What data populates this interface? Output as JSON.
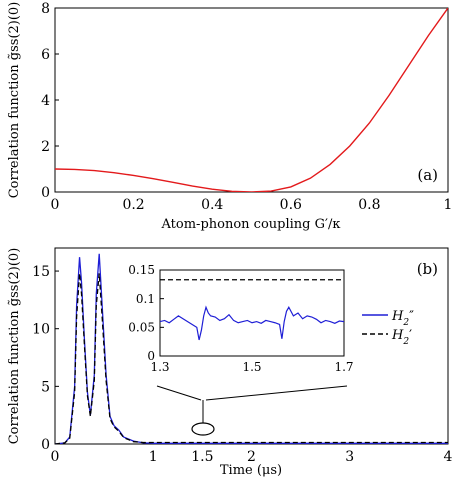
{
  "chart_data": [
    {
      "panel_label": "(a)",
      "type": "line",
      "xlabel": "Atom-phonon coupling G′/κ",
      "ylabel": "Correlation function g̃ss(2)(0)",
      "xlim": [
        0,
        1
      ],
      "ylim": [
        0,
        8
      ],
      "xticks": [
        "0",
        "0.2",
        "0.4",
        "0.6",
        "0.8",
        "1"
      ],
      "yticks": [
        "0",
        "2",
        "4",
        "6",
        "8"
      ],
      "grid": false,
      "color": "#e31a1c",
      "series": [
        {
          "name": "",
          "x": [
            0,
            0.05,
            0.1,
            0.15,
            0.2,
            0.25,
            0.3,
            0.35,
            0.4,
            0.45,
            0.5,
            0.55,
            0.6,
            0.65,
            0.7,
            0.75,
            0.8,
            0.85,
            0.9,
            0.95,
            1.0
          ],
          "y": [
            1.0,
            0.98,
            0.93,
            0.84,
            0.72,
            0.58,
            0.42,
            0.26,
            0.12,
            0.03,
            0.0,
            0.04,
            0.22,
            0.6,
            1.2,
            2.0,
            3.0,
            4.2,
            5.5,
            6.8,
            8.0
          ]
        }
      ]
    },
    {
      "panel_label": "(b)",
      "type": "line",
      "xlabel": "Time (μs)",
      "ylabel": "Correlation function g̃ss(2)(0)",
      "xlim": [
        0,
        4
      ],
      "ylim": [
        0,
        17
      ],
      "xticks": [
        "0",
        "1",
        "1.5",
        "2",
        "3",
        "4"
      ],
      "yticks": [
        "0",
        "5",
        "10",
        "15"
      ],
      "legend_position": "right",
      "series": [
        {
          "name": "H2″",
          "color": "#1f1fd6",
          "x": [
            0,
            0.1,
            0.15,
            0.2,
            0.22,
            0.25,
            0.27,
            0.3,
            0.33,
            0.36,
            0.4,
            0.42,
            0.45,
            0.48,
            0.52,
            0.56,
            0.6,
            0.65,
            0.7,
            0.8,
            0.9,
            1.0,
            1.2,
            1.5,
            2.0,
            3.0,
            4.0
          ],
          "y": [
            0,
            0.1,
            0.6,
            5.0,
            12.0,
            16.2,
            14.0,
            9.0,
            4.5,
            2.5,
            6.0,
            13.0,
            16.5,
            12.0,
            6.0,
            2.4,
            1.6,
            1.2,
            0.6,
            0.25,
            0.1,
            0.06,
            0.06,
            0.06,
            0.06,
            0.06,
            0.06
          ]
        },
        {
          "name": "H2′",
          "color": "#000000",
          "dashed": true,
          "x": [
            0,
            0.1,
            0.15,
            0.2,
            0.22,
            0.25,
            0.27,
            0.3,
            0.33,
            0.36,
            0.4,
            0.42,
            0.45,
            0.48,
            0.52,
            0.56,
            0.6,
            0.65,
            0.7,
            0.8,
            0.9,
            1.0,
            1.2,
            1.5,
            2.0,
            3.0,
            4.0
          ],
          "y": [
            0,
            0.1,
            0.5,
            4.5,
            11.0,
            14.8,
            13.0,
            8.5,
            4.2,
            2.4,
            5.5,
            12.0,
            14.8,
            11.0,
            5.5,
            2.2,
            1.5,
            1.1,
            0.55,
            0.2,
            0.13,
            0.13,
            0.13,
            0.13,
            0.13,
            0.13,
            0.13
          ]
        }
      ],
      "inset": {
        "xlim": [
          1.3,
          1.7
        ],
        "ylim": [
          0,
          0.15
        ],
        "xticks": [
          "1.3",
          "1.5",
          "1.7"
        ],
        "yticks": [
          "0",
          "0.05",
          "0.1",
          "0.15"
        ],
        "series": [
          {
            "name": "H2″",
            "color": "#1f1fd6",
            "x": [
              1.3,
              1.31,
              1.32,
              1.33,
              1.34,
              1.35,
              1.36,
              1.37,
              1.38,
              1.385,
              1.39,
              1.395,
              1.4,
              1.405,
              1.41,
              1.42,
              1.43,
              1.44,
              1.45,
              1.46,
              1.47,
              1.48,
              1.49,
              1.5,
              1.51,
              1.52,
              1.53,
              1.54,
              1.55,
              1.56,
              1.565,
              1.57,
              1.575,
              1.58,
              1.59,
              1.6,
              1.61,
              1.62,
              1.63,
              1.64,
              1.65,
              1.66,
              1.67,
              1.68,
              1.69,
              1.7
            ],
            "y": [
              0.06,
              0.062,
              0.058,
              0.064,
              0.07,
              0.065,
              0.06,
              0.055,
              0.05,
              0.028,
              0.045,
              0.07,
              0.085,
              0.075,
              0.07,
              0.068,
              0.062,
              0.065,
              0.072,
              0.062,
              0.058,
              0.06,
              0.062,
              0.058,
              0.06,
              0.057,
              0.062,
              0.06,
              0.058,
              0.055,
              0.03,
              0.06,
              0.078,
              0.085,
              0.07,
              0.075,
              0.065,
              0.07,
              0.068,
              0.064,
              0.058,
              0.062,
              0.06,
              0.057,
              0.061,
              0.06
            ]
          },
          {
            "name": "H2′",
            "color": "#000000",
            "dashed": true,
            "x": [
              1.3,
              1.7
            ],
            "y": [
              0.133,
              0.133
            ]
          }
        ]
      }
    }
  ]
}
